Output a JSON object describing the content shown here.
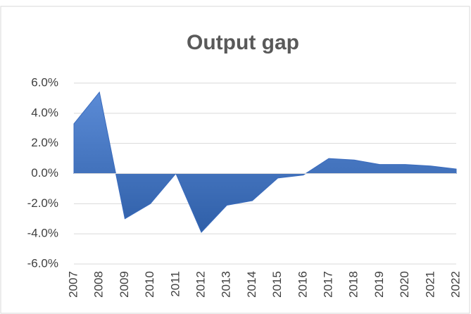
{
  "chart_data": {
    "type": "area",
    "title": "Output gap",
    "categories": [
      "2007",
      "2008",
      "2009",
      "2010",
      "2011",
      "2012",
      "2013",
      "2014",
      "2015",
      "2016",
      "2017",
      "2018",
      "2019",
      "2020",
      "2021",
      "2022"
    ],
    "series": [
      {
        "name": "Output gap",
        "color": "#4472c4",
        "values": [
          3.3,
          5.4,
          -3.0,
          -2.0,
          0.0,
          -3.9,
          -2.1,
          -1.8,
          -0.3,
          -0.1,
          1.0,
          0.9,
          0.6,
          0.6,
          0.5,
          0.3
        ]
      }
    ],
    "ylim": [
      -6,
      6
    ],
    "yticks": [
      {
        "value": -6,
        "label": "-6.0%"
      },
      {
        "value": -4,
        "label": "-4.0%"
      },
      {
        "value": -2,
        "label": "-2.0%"
      },
      {
        "value": 0,
        "label": "0.0%"
      },
      {
        "value": 2,
        "label": "2.0%"
      },
      {
        "value": 4,
        "label": "4.0%"
      },
      {
        "value": 6,
        "label": "6.0%"
      }
    ],
    "grid": true
  }
}
